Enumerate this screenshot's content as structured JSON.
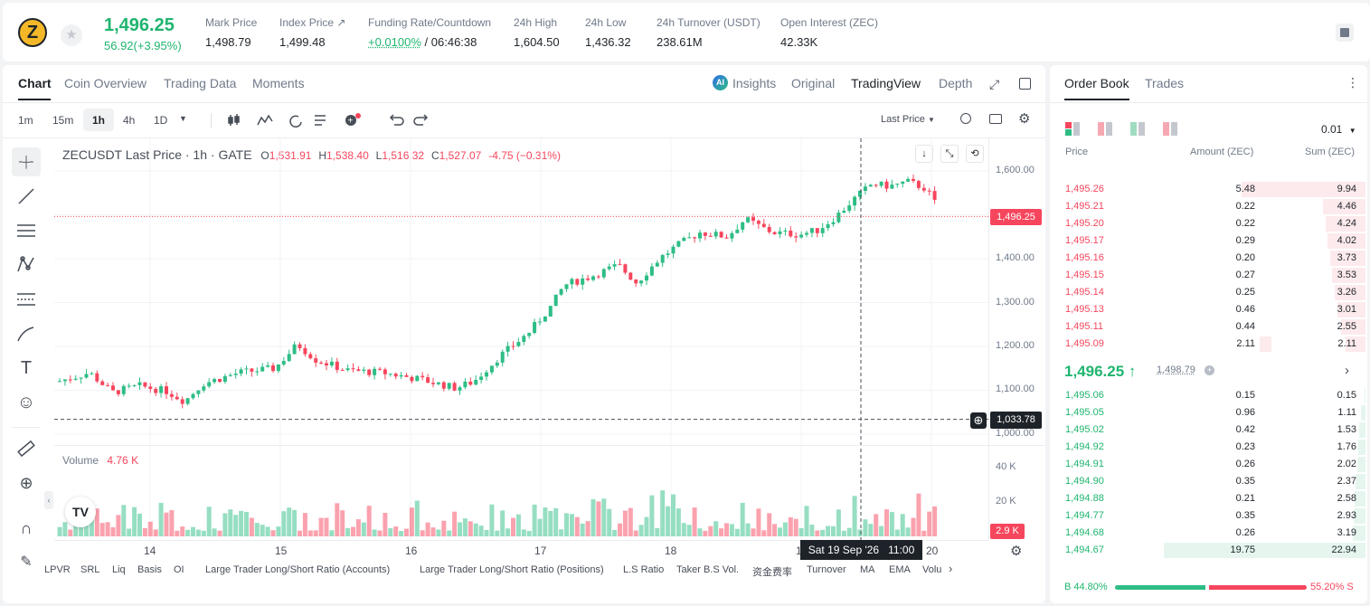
{
  "ticker": {
    "coin_symbol": "Z",
    "last": "1,496.25",
    "change": "56.92(+3.95%)",
    "stats": [
      {
        "label": "Mark Price",
        "value": "1,498.79"
      },
      {
        "label": "Index Price ↗",
        "value": "1,499.48"
      },
      {
        "label": "Funding Rate/Countdown",
        "value_rate": "+0.0100%",
        "value_cd": "/ 06:46:38"
      },
      {
        "label": "24h High",
        "value": "1,604.50"
      },
      {
        "label": "24h Low",
        "value": "1,436.32"
      },
      {
        "label": "24h Turnover (USDT)",
        "value": "238.61M"
      },
      {
        "label": "Open Interest (ZEC)",
        "value": "42.33K"
      }
    ]
  },
  "chart_tabs": [
    "Chart",
    "Coin Overview",
    "Trading Data",
    "Moments"
  ],
  "view_tabs": {
    "insights": "Insights",
    "original": "Original",
    "tradingview": "TradingView",
    "depth": "Depth"
  },
  "intervals": [
    "1m",
    "15m",
    "1h",
    "4h",
    "1D"
  ],
  "price_source": "Last Price",
  "legend": {
    "symbol": "ZECUSDT Last Price · 1h · GATE",
    "o": "1,531.91",
    "h": "1,538.40",
    "l": "1,516.32",
    "c": "1,527.07",
    "chg": "-4.75 (−0.31%)"
  },
  "volume_legend": {
    "label": "Volume",
    "value": "4.76 K"
  },
  "price_tag": "1,496.25",
  "cross_tag": "1,033.78",
  "vol_tag": "2.9 K",
  "time_tag": "Sat 19 Sep '26   11:00",
  "chart_data": {
    "type": "candlestick",
    "x_ticks": [
      "14",
      "15",
      "16",
      "17",
      "18",
      "19",
      "20"
    ],
    "y_ticks": [
      "1,600.00",
      "1,500.00",
      "1,400.00",
      "1,300.00",
      "1,200.00",
      "1,100.00",
      "1,000.00"
    ],
    "vol_ticks": [
      "40 K",
      "20 K"
    ],
    "ylim": [
      990,
      1620
    ]
  },
  "indicators": [
    "LPVR",
    "SRL",
    "Liq",
    "Basis",
    "OI",
    "Large Trader Long/Short Ratio (Accounts)",
    "Large Trader Long/Short Ratio (Positions)",
    "L.S Ratio",
    "Taker B.S Vol.",
    "资金费率",
    "Turnover",
    "MA",
    "EMA",
    "Volu"
  ],
  "orderbook": {
    "tabs": [
      "Order Book",
      "Trades"
    ],
    "tick": "0.01",
    "headers": [
      "Price",
      "Amount (ZEC)",
      "Sum (ZEC)"
    ],
    "asks": [
      [
        "1,495.26",
        "5.48",
        "9.94"
      ],
      [
        "1,495.21",
        "0.22",
        "4.46"
      ],
      [
        "1,495.20",
        "0.22",
        "4.24"
      ],
      [
        "1,495.17",
        "0.29",
        "4.02"
      ],
      [
        "1,495.16",
        "0.20",
        "3.73"
      ],
      [
        "1,495.15",
        "0.27",
        "3.53"
      ],
      [
        "1,495.14",
        "0.25",
        "3.26"
      ],
      [
        "1,495.13",
        "0.46",
        "3.01"
      ],
      [
        "1,495.11",
        "0.44",
        "2.55"
      ],
      [
        "1,495.09",
        "2.11",
        "2.11"
      ]
    ],
    "mid": "1,496.25 ↑",
    "mark": "1,498.79",
    "bids": [
      [
        "1,495.06",
        "0.15",
        "0.15"
      ],
      [
        "1,495.05",
        "0.96",
        "1.11"
      ],
      [
        "1,495.02",
        "0.42",
        "1.53"
      ],
      [
        "1,494.92",
        "0.23",
        "1.76"
      ],
      [
        "1,494.91",
        "0.26",
        "2.02"
      ],
      [
        "1,494.90",
        "0.35",
        "2.37"
      ],
      [
        "1,494.88",
        "0.21",
        "2.58"
      ],
      [
        "1,494.77",
        "0.35",
        "2.93"
      ],
      [
        "1,494.68",
        "0.26",
        "3.19"
      ],
      [
        "1,494.67",
        "19.75",
        "22.94"
      ]
    ],
    "buy_pct": "B 44.80%",
    "sell_pct": "55.20% S"
  },
  "colors": {
    "up": "#2ebd85",
    "down": "#f6465d"
  }
}
